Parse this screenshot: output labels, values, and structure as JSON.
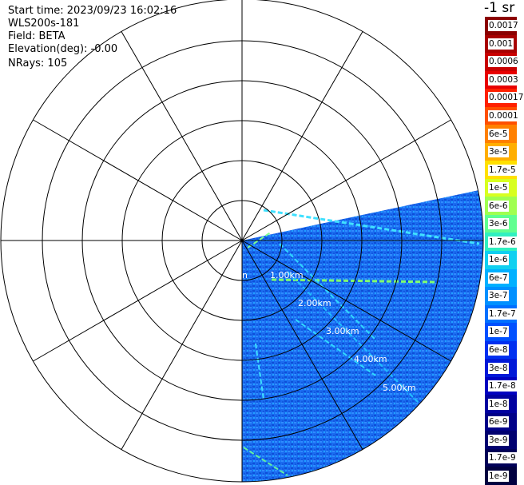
{
  "header": {
    "start_time": "Start time: 2023/09/23 16:02:16",
    "instrument": "WLS200s-181",
    "field": "Field: BETA",
    "elevation": "Elevation(deg): -0.00",
    "nrays": "NRays: 105"
  },
  "colorbar": {
    "units_label": "-1 sr",
    "ticks": [
      {
        "label": "0.0017",
        "color": "#8b0000"
      },
      {
        "label": "0.001",
        "color": "#a80000"
      },
      {
        "label": "0.0006",
        "color": "#c80000"
      },
      {
        "label": "0.0003",
        "color": "#e80000"
      },
      {
        "label": "0.00017",
        "color": "#ff2000"
      },
      {
        "label": "0.0001",
        "color": "#ff5000"
      },
      {
        "label": "6e-5",
        "color": "#ff8000"
      },
      {
        "label": "3e-5",
        "color": "#ffae00"
      },
      {
        "label": "1.7e-5",
        "color": "#ffe000"
      },
      {
        "label": "1e-5",
        "color": "#d8ff20"
      },
      {
        "label": "6e-6",
        "color": "#a0ff50"
      },
      {
        "label": "3e-6",
        "color": "#60ff90"
      },
      {
        "label": "1.7e-6",
        "color": "#30f0c0"
      },
      {
        "label": "1e-6",
        "color": "#10d0f0"
      },
      {
        "label": "6e-7",
        "color": "#00b0ff"
      },
      {
        "label": "3e-7",
        "color": "#0090ff"
      },
      {
        "label": "1.7e-7",
        "color": "#0070ff"
      },
      {
        "label": "1e-7",
        "color": "#0050ff"
      },
      {
        "label": "6e-8",
        "color": "#0030f0"
      },
      {
        "label": "3e-8",
        "color": "#0018d8"
      },
      {
        "label": "1.7e-8",
        "color": "#0000c0"
      },
      {
        "label": "1e-8",
        "color": "#0000a0"
      },
      {
        "label": "6e-9",
        "color": "#000088"
      },
      {
        "label": "3e-9",
        "color": "#000070"
      },
      {
        "label": "1.7e-9",
        "color": "#000058"
      },
      {
        "label": "1e-9",
        "color": "#000040"
      }
    ]
  },
  "range_labels": [
    "1.00km",
    "2.00km",
    "3.00km",
    "4.00km",
    "5.00km"
  ],
  "edge_label": "n",
  "scan": {
    "azimuth_start_deg": 78,
    "azimuth_end_deg": 180,
    "background_color": "#1a6cf0"
  }
}
